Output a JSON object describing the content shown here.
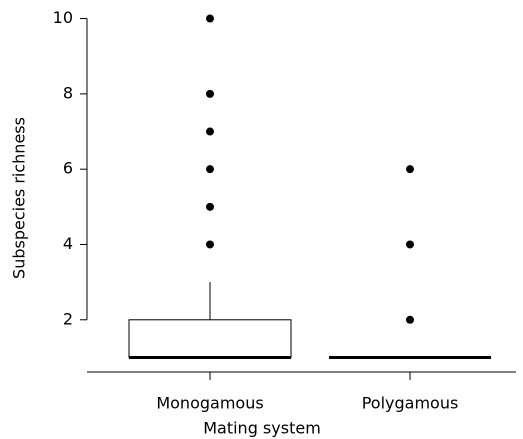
{
  "chart_data": {
    "type": "box",
    "x_label": "Mating system",
    "y_label": "Subspecies richness",
    "categories": [
      "Monogamous",
      "Polygamous"
    ],
    "boxes": [
      {
        "whisker_low": 1,
        "q1": 1,
        "median": 1,
        "q3": 2,
        "whisker_high": 3,
        "outliers": [
          4,
          5,
          6,
          7,
          8,
          10
        ]
      },
      {
        "whisker_low": 1,
        "q1": 1,
        "median": 1,
        "q3": 1,
        "whisker_high": 1,
        "outliers": [
          2,
          4,
          6
        ]
      }
    ],
    "ylim": [
      0.64,
      10.36
    ],
    "yticks": [
      2,
      4,
      6,
      8,
      10
    ],
    "color": "#000000"
  }
}
